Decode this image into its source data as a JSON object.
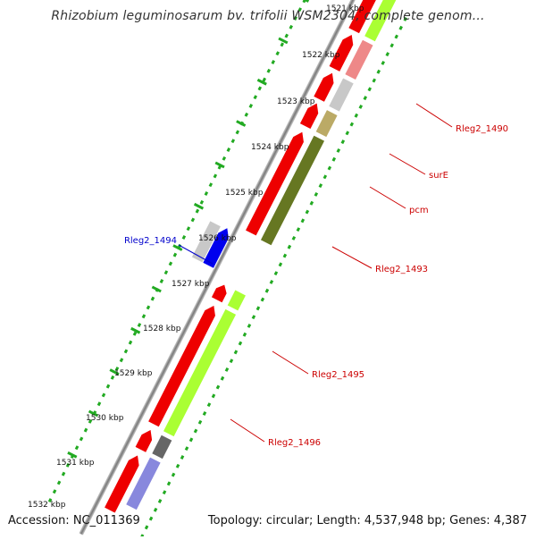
{
  "header": {
    "title": "Rhizobium leguminosarum bv. trifolii WSM2304, complete genom..."
  },
  "ruler": {
    "ticks": [
      "1521 kbp",
      "1522 kbp",
      "1523 kbp",
      "1524 kbp",
      "1525 kbp",
      "1526 kbp",
      "1527 kbp",
      "1528 kbp",
      "1529 kbp",
      "1530 kbp",
      "1531 kbp",
      "1532 kbp"
    ]
  },
  "genes": {
    "labels": [
      {
        "name": "Rleg2_1490",
        "color": "#cc0000"
      },
      {
        "name": "surE",
        "color": "#cc0000"
      },
      {
        "name": "pcm",
        "color": "#cc0000"
      },
      {
        "name": "Rleg2_1494",
        "color": "#0000cc"
      },
      {
        "name": "Rleg2_1493",
        "color": "#cc0000"
      },
      {
        "name": "Rleg2_1495",
        "color": "#cc0000"
      },
      {
        "name": "Rleg2_1496",
        "color": "#cc0000"
      }
    ]
  },
  "colors": {
    "forward_cds": "#ee0000",
    "cog_green": "#aaff33",
    "cog_olive": "#667722",
    "cog_khaki": "#bbaa66",
    "cog_grey": "#c8c8c8",
    "cog_pink": "#ee8888",
    "cog_dark": "#666666",
    "cog_blue": "#0000ee",
    "cog_lavender": "#8888dd",
    "backbone": "#888888",
    "ruler_dots": "#22aa22"
  },
  "footer": {
    "accession": "Accession: NC_011369",
    "summary": "Topology: circular; Length: 4,537,948 bp; Genes: 4,387"
  }
}
